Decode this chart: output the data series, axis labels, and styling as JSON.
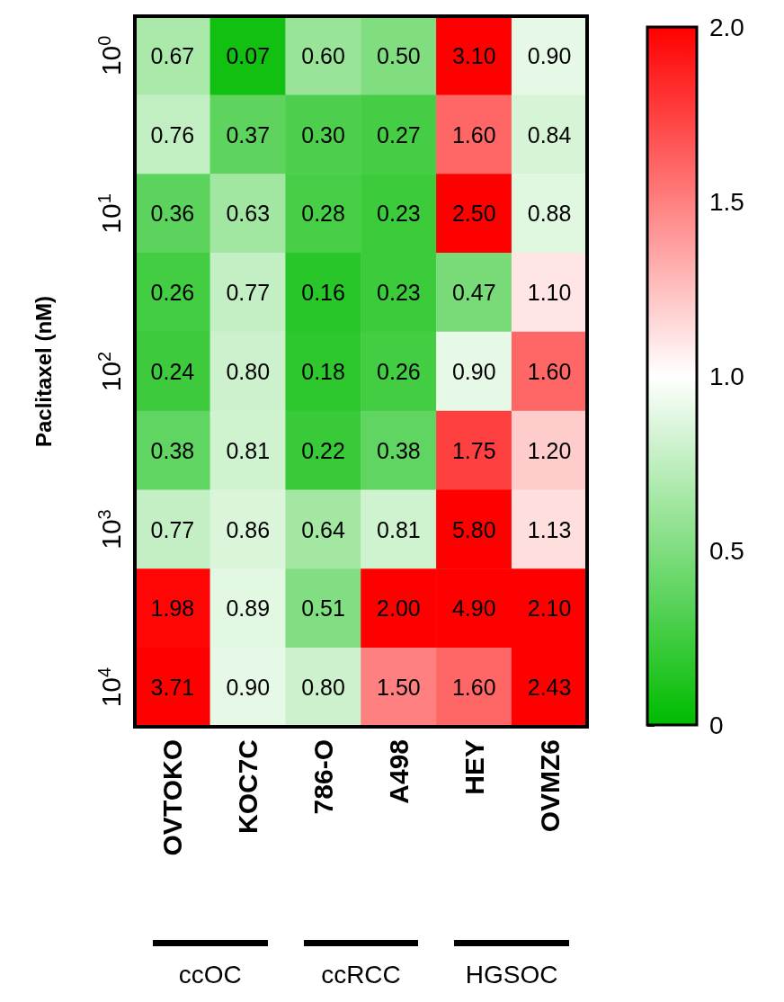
{
  "chart_data": {
    "type": "heatmap",
    "ylabel": "Paclitaxel (nM)",
    "categories": [
      "OVTOKO",
      "KOC7C",
      "786-O",
      "A498",
      "HEY",
      "OVMZ6"
    ],
    "y_categories": [
      "10$^{0}$",
      null,
      "10$^{1}$",
      null,
      "10$^{2}$",
      null,
      "10$^{3}$",
      null,
      "10$^{4}$"
    ],
    "cells": [
      [
        0.67,
        0.07,
        0.6,
        0.5,
        3.1,
        0.9
      ],
      [
        0.76,
        0.37,
        0.3,
        0.27,
        1.6,
        0.84
      ],
      [
        0.36,
        0.63,
        0.28,
        0.23,
        2.5,
        0.88
      ],
      [
        0.26,
        0.77,
        0.16,
        0.23,
        0.47,
        1.1
      ],
      [
        0.24,
        0.8,
        0.18,
        0.26,
        0.9,
        1.6
      ],
      [
        0.38,
        0.81,
        0.22,
        0.38,
        1.75,
        1.2
      ],
      [
        0.77,
        0.86,
        0.64,
        0.81,
        5.8,
        1.13
      ],
      [
        1.98,
        0.89,
        0.51,
        2.0,
        4.9,
        2.1
      ],
      [
        3.71,
        0.9,
        0.8,
        1.5,
        1.6,
        2.43
      ]
    ],
    "cell_labels": [
      [
        "0.67",
        "0.07",
        "0.60",
        "0.50",
        "3.10",
        "0.90"
      ],
      [
        "0.76",
        "0.37",
        "0.30",
        "0.27",
        "1.60",
        "0.84"
      ],
      [
        "0.36",
        "0.63",
        "0.28",
        "0.23",
        "2.50",
        "0.88"
      ],
      [
        "0.26",
        "0.77",
        "0.16",
        "0.23",
        "0.47",
        "1.10"
      ],
      [
        "0.24",
        "0.80",
        "0.18",
        "0.26",
        "0.90",
        "1.60"
      ],
      [
        "0.38",
        "0.81",
        "0.22",
        "0.38",
        "1.75",
        "1.20"
      ],
      [
        "0.77",
        "0.86",
        "0.64",
        "0.81",
        "5.80",
        "1.13"
      ],
      [
        "1.98",
        "0.89",
        "0.51",
        "2.00",
        "4.90",
        "2.10"
      ],
      [
        "3.71",
        "0.90",
        "0.80",
        "1.50",
        "1.60",
        "2.43"
      ]
    ],
    "clim": [
      0,
      2
    ],
    "cticks": [
      0,
      0.5,
      {
        "value": 1,
        "label": "1.0"
      },
      1.5,
      {
        "value": 2,
        "label": "2.0"
      }
    ],
    "colors": [
      "#00bb00",
      "#ffffff",
      "#ff0000"
    ],
    "annotations": [
      "ccOC",
      "ccRCC",
      "HGSOC"
    ]
  }
}
